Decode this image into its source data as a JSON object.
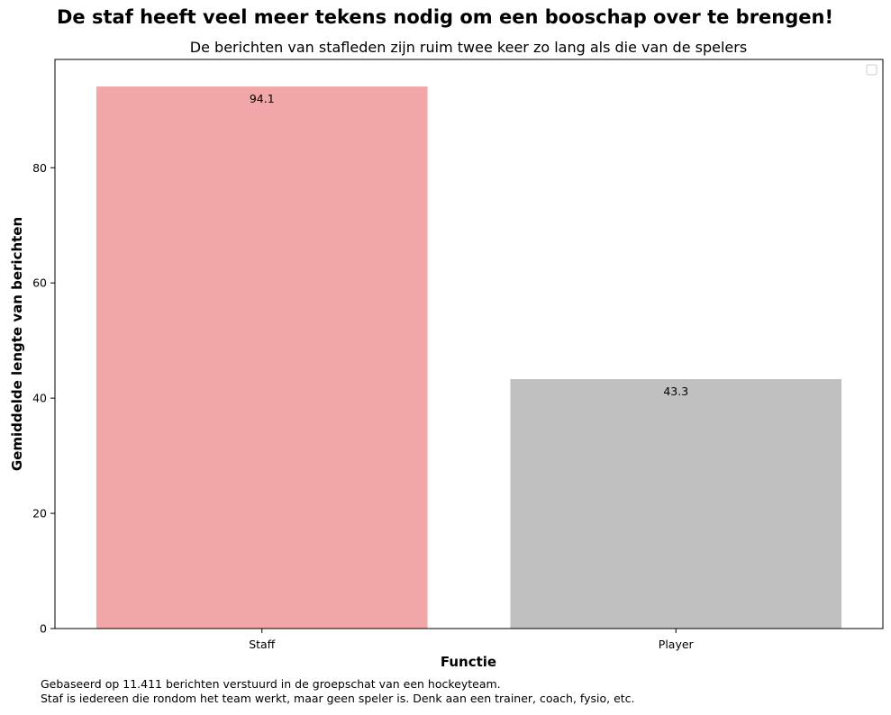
{
  "chart_data": {
    "type": "bar",
    "title": "De staf heeft veel meer tekens nodig om een booschap over te brengen!",
    "subtitle": "De berichten van stafleden zijn ruim twee keer zo lang als die van de spelers",
    "xlabel": "Functie",
    "ylabel": "Gemiddelde lengte van berichten",
    "categories": [
      "Staff",
      "Player"
    ],
    "values": [
      94.1,
      43.3
    ],
    "data_labels": [
      "94.1",
      "43.3"
    ],
    "bar_colors": [
      "#f1a7a8",
      "#c0c0c0"
    ],
    "ylim": [
      0,
      98.8
    ],
    "yticks": [
      0,
      20,
      40,
      60,
      80
    ],
    "ytick_labels": [
      "0",
      "20",
      "40",
      "60",
      "80"
    ],
    "grid": false,
    "legend": {
      "placement": "top-right",
      "entries": []
    }
  },
  "footnote": {
    "line1": "Gebaseerd op 11.411 berichten verstuurd in de groepschat van een hockeyteam.",
    "line2": "Staf is iedereen die rondom het team werkt, maar geen speler is. Denk aan een trainer, coach, fysio, etc."
  }
}
